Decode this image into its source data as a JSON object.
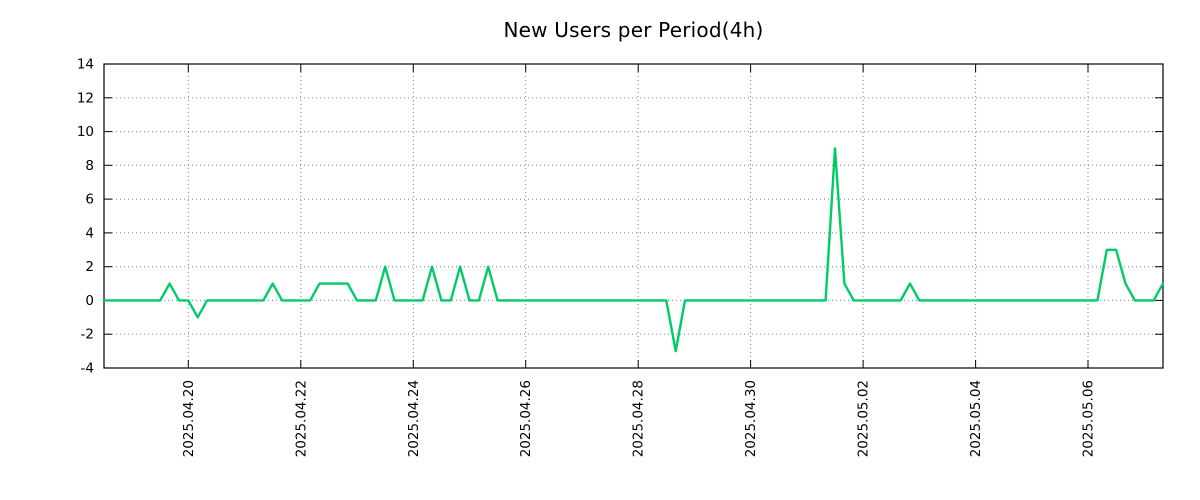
{
  "chart_data": {
    "type": "line",
    "title": "New Users per Period(4h)",
    "line_color": "#00cc66",
    "background": "#ffffff",
    "grid": true,
    "legend": "none",
    "period_hours": 4,
    "ylim": [
      -4,
      14
    ],
    "y_ticks": [
      -4,
      -2,
      0,
      2,
      4,
      6,
      8,
      10,
      12,
      14
    ],
    "x_tick_labels": [
      "2025.04.20",
      "2025.04.22",
      "2025.04.24",
      "2025.04.26",
      "2025.04.28",
      "2025.04.30",
      "2025.05.02",
      "2025.05.04",
      "2025.05.06"
    ],
    "x_tick_indices": [
      9,
      21,
      33,
      45,
      57,
      69,
      81,
      93,
      105
    ],
    "values": [
      0,
      0,
      0,
      0,
      0,
      0,
      0,
      1,
      0,
      0,
      -1,
      0,
      0,
      0,
      0,
      0,
      0,
      0,
      1,
      0,
      0,
      0,
      0,
      1,
      1,
      1,
      1,
      0,
      0,
      0,
      2,
      0,
      0,
      0,
      0,
      2,
      0,
      0,
      2,
      0,
      0,
      2,
      0,
      0,
      0,
      0,
      0,
      0,
      0,
      0,
      0,
      0,
      0,
      0,
      0,
      0,
      0,
      0,
      0,
      0,
      0,
      -3,
      0,
      0,
      0,
      0,
      0,
      0,
      0,
      0,
      0,
      0,
      0,
      0,
      0,
      0,
      0,
      0,
      9,
      1,
      0,
      0,
      0,
      0,
      0,
      0,
      1,
      0,
      0,
      0,
      0,
      0,
      0,
      0,
      0,
      0,
      0,
      0,
      0,
      0,
      0,
      0,
      0,
      0,
      0,
      0,
      0,
      3,
      3,
      1,
      0,
      0,
      0,
      1
    ]
  }
}
